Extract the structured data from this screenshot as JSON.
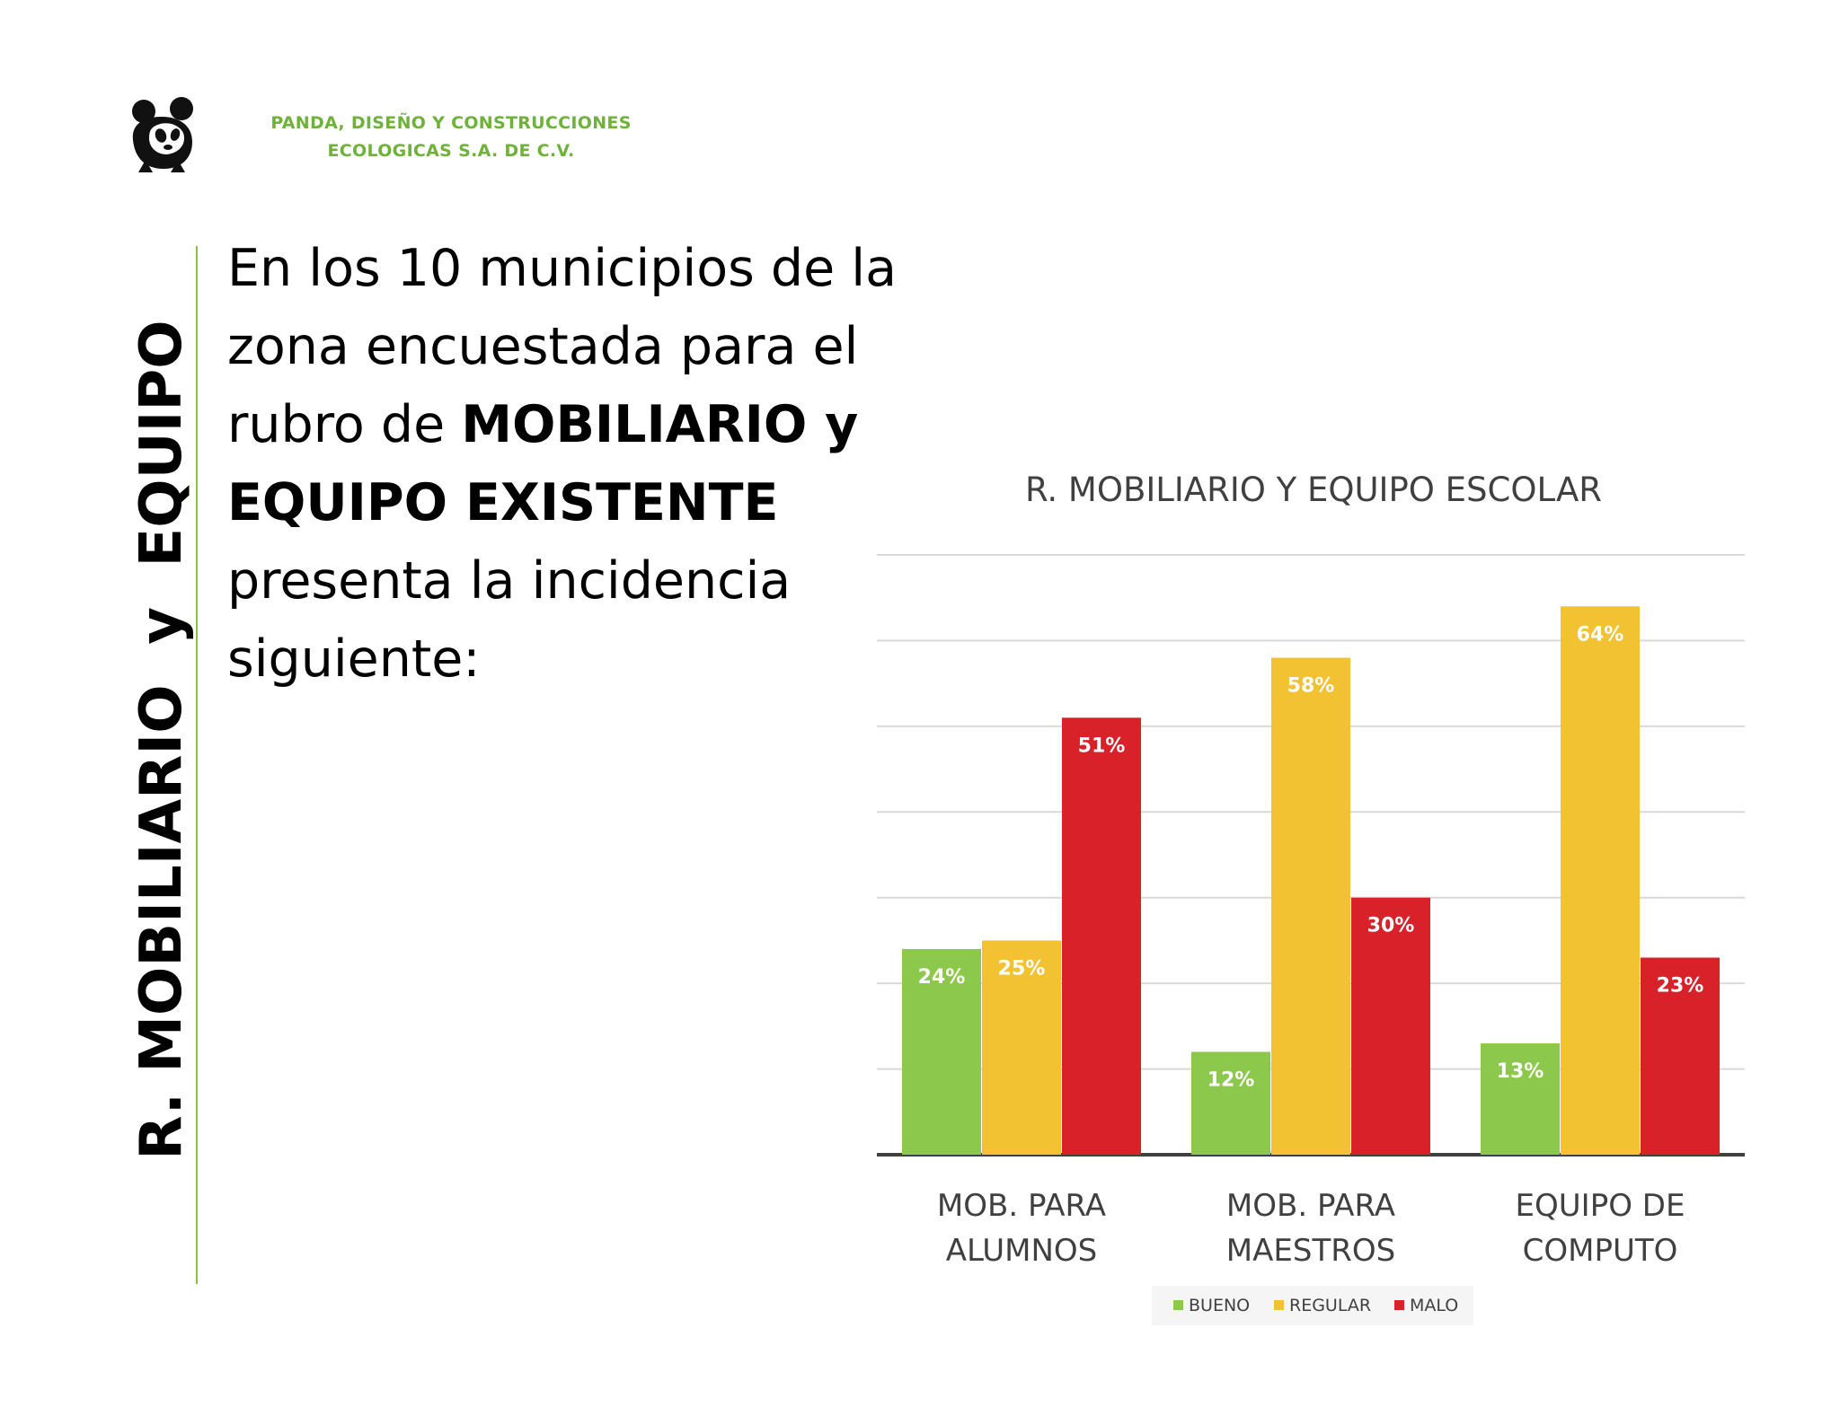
{
  "header": {
    "company_line1": "PANDA, DISEÑO Y CONSTRUCCIONES",
    "company_line2": "ECOLOGICAS S.A. DE C.V.",
    "logo_icon": "panda-logo-icon",
    "accent_color": "#6fb23a"
  },
  "side_title": "R. MOBILIARIO  y  EQUIPO",
  "intro": {
    "line1": "En los 10 municipios de la",
    "line2": "zona encuestada para el",
    "line3_prefix": "rubro de ",
    "line3_bold": "MOBILIARIO y",
    "line4_bold": "EQUIPO EXISTENTE",
    "line5": "presenta la incidencia",
    "line6": "siguiente:"
  },
  "chart_data": {
    "type": "bar",
    "title": "R. MOBILIARIO Y EQUIPO ESCOLAR",
    "categories": [
      [
        "MOB. PARA",
        "ALUMNOS"
      ],
      [
        "MOB. PARA",
        "MAESTROS"
      ],
      [
        "EQUIPO DE",
        "COMPUTO"
      ]
    ],
    "series": [
      {
        "name": "BUENO",
        "color": "#8cc84b",
        "values": [
          24,
          12,
          13
        ],
        "labels": [
          "24%",
          "12%",
          "13%"
        ]
      },
      {
        "name": "REGULAR",
        "color": "#f2c232",
        "values": [
          25,
          58,
          64
        ],
        "labels": [
          "25%",
          "58%",
          "64%"
        ]
      },
      {
        "name": "MALO",
        "color": "#d82128",
        "values": [
          51,
          30,
          23
        ],
        "labels": [
          "51%",
          "30%",
          "23%"
        ]
      }
    ],
    "ylim": [
      0,
      70
    ],
    "grid": true,
    "legend": "bottom"
  }
}
